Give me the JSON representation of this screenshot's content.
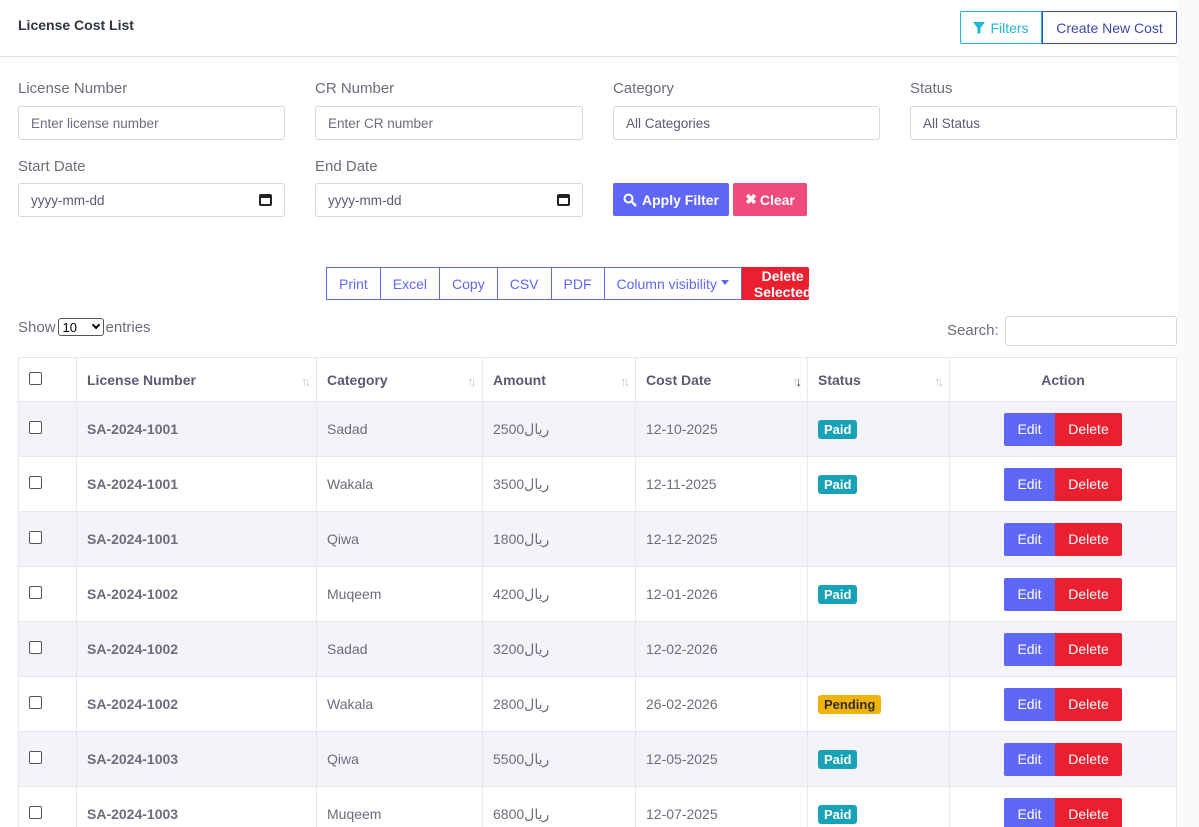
{
  "header": {
    "title": "License Cost List",
    "filters_label": "Filters",
    "create_label": "Create New Cost"
  },
  "filters": {
    "license": {
      "label": "License Number",
      "placeholder": "Enter license number"
    },
    "cr": {
      "label": "CR Number",
      "placeholder": "Enter CR number"
    },
    "category": {
      "label": "Category",
      "value": "All Categories"
    },
    "status": {
      "label": "Status",
      "value": "All Status"
    },
    "start": {
      "label": "Start Date",
      "placeholder": "yyyy-mm-dd"
    },
    "end": {
      "label": "End Date",
      "placeholder": "yyyy-mm-dd"
    },
    "apply_label": "Apply Filter",
    "clear_label": "Clear"
  },
  "toolbar": {
    "print": "Print",
    "excel": "Excel",
    "copy": "Copy",
    "csv": "CSV",
    "pdf": "PDF",
    "colvis": "Column visibility",
    "delete_selected": "Delete Selected"
  },
  "length": {
    "show": "Show",
    "value": "10",
    "entries": "entries"
  },
  "search": {
    "label": "Search:"
  },
  "table": {
    "columns": [
      "License Number",
      "Category",
      "Amount",
      "Cost Date",
      "Status",
      "Action"
    ],
    "edit_label": "Edit",
    "delete_label": "Delete",
    "rows": [
      {
        "license": "SA-2024-1001",
        "category": "Sadad",
        "amount": "2500ريال",
        "date": "12-10-2025",
        "status": "Paid"
      },
      {
        "license": "SA-2024-1001",
        "category": "Wakala",
        "amount": "3500ريال",
        "date": "12-11-2025",
        "status": "Paid"
      },
      {
        "license": "SA-2024-1001",
        "category": "Qiwa",
        "amount": "1800ريال",
        "date": "12-12-2025",
        "status": ""
      },
      {
        "license": "SA-2024-1002",
        "category": "Muqeem",
        "amount": "4200ريال",
        "date": "12-01-2026",
        "status": "Paid"
      },
      {
        "license": "SA-2024-1002",
        "category": "Sadad",
        "amount": "3200ريال",
        "date": "12-02-2026",
        "status": ""
      },
      {
        "license": "SA-2024-1002",
        "category": "Wakala",
        "amount": "2800ريال",
        "date": "26-02-2026",
        "status": "Pending"
      },
      {
        "license": "SA-2024-1003",
        "category": "Qiwa",
        "amount": "5500ريال",
        "date": "12-05-2025",
        "status": "Paid"
      },
      {
        "license": "SA-2024-1003",
        "category": "Muqeem",
        "amount": "6800ريال",
        "date": "12-07-2025",
        "status": "Paid"
      }
    ]
  },
  "colors": {
    "primary": "#5f67f6",
    "danger": "#ea1f2f",
    "info": "#17a2b8",
    "warning": "#f0b30a",
    "clear": "#ef4b7e"
  }
}
